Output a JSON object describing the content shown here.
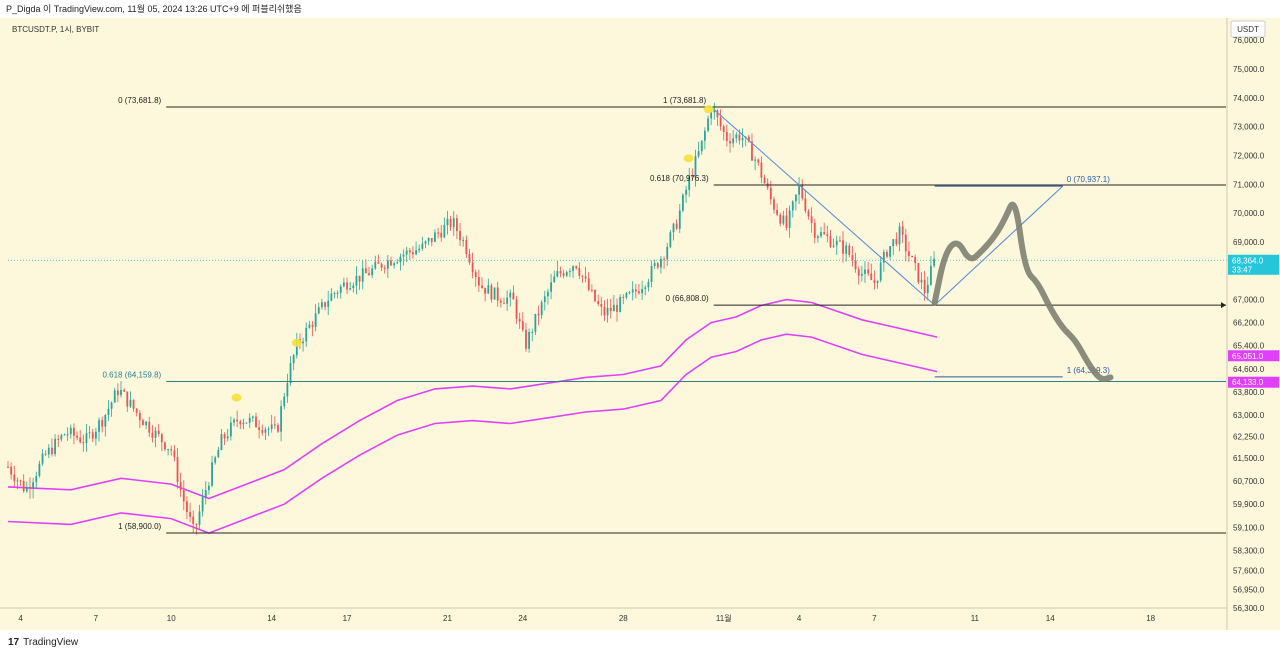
{
  "header": {
    "title": "P_Digda 이 TradingView.com, 11월 05, 2024 13:26 UTC+9 에 퍼블리쉬했음"
  },
  "colors": {
    "background": "#fdf8dc",
    "candle_up": "#26a69a",
    "candle_down": "#ef5350",
    "envelope": "#e040fb",
    "fib_line": "#222222",
    "fib_blue": "#2a5caa",
    "trend_line": "#5b8fd8",
    "drawing": "#7f7f72",
    "highlight": "#f5e03a",
    "price_tag_current": "#26c6da",
    "price_tag_magenta": "#e040fb"
  },
  "chart_data": {
    "type": "candlestick",
    "symbol": "BTCUSDT.P, 1시, BYBIT",
    "currency": "USDT",
    "ylim": [
      56300,
      76700
    ],
    "yticks": [
      "76,000.0",
      "75,000.0",
      "74,000.0",
      "73,000.0",
      "72,000.0",
      "71,000.0",
      "70,000.0",
      "69,000.0",
      "67,000.0",
      "66,200.0",
      "65,400.0",
      "64,600.0",
      "63,800.0",
      "63,000.0",
      "62,250.0",
      "61,500.0",
      "60,700.0",
      "59,900.0",
      "59,100.0",
      "58,300.0",
      "57,600.0",
      "56,950.0",
      "56,300.0"
    ],
    "xticks": [
      {
        "label": "4",
        "day": 4
      },
      {
        "label": "7",
        "day": 7
      },
      {
        "label": "10",
        "day": 10
      },
      {
        "label": "14",
        "day": 14
      },
      {
        "label": "17",
        "day": 17
      },
      {
        "label": "21",
        "day": 21
      },
      {
        "label": "24",
        "day": 24
      },
      {
        "label": "28",
        "day": 28
      },
      {
        "label": "11월",
        "day": 32
      },
      {
        "label": "4",
        "day": 35
      },
      {
        "label": "7",
        "day": 38
      },
      {
        "label": "11",
        "day": 42
      },
      {
        "label": "14",
        "day": 45
      },
      {
        "label": "18",
        "day": 49
      }
    ],
    "xlim": [
      3.5,
      52
    ],
    "price_path": [
      [
        3.5,
        61200
      ],
      [
        4.2,
        60400
      ],
      [
        5,
        61600
      ],
      [
        5.8,
        62400
      ],
      [
        6.6,
        62100
      ],
      [
        7.3,
        62900
      ],
      [
        7.9,
        63900
      ],
      [
        8.6,
        63100
      ],
      [
        9.3,
        62400
      ],
      [
        10.0,
        61800
      ],
      [
        10.4,
        60300
      ],
      [
        10.9,
        58900
      ],
      [
        11.4,
        60500
      ],
      [
        12.0,
        62100
      ],
      [
        12.7,
        62900
      ],
      [
        13.4,
        62700
      ],
      [
        14.2,
        62400
      ],
      [
        14.6,
        64200
      ],
      [
        15.0,
        65400
      ],
      [
        15.6,
        66200
      ],
      [
        16.3,
        67100
      ],
      [
        17.0,
        67600
      ],
      [
        17.8,
        67900
      ],
      [
        18.5,
        68300
      ],
      [
        19.3,
        68600
      ],
      [
        20.0,
        68800
      ],
      [
        20.6,
        69300
      ],
      [
        21.2,
        69700
      ],
      [
        21.7,
        68900
      ],
      [
        22.3,
        67500
      ],
      [
        23.0,
        67100
      ],
      [
        23.6,
        67000
      ],
      [
        24.1,
        65400
      ],
      [
        24.6,
        66500
      ],
      [
        25.3,
        67800
      ],
      [
        26.1,
        68300
      ],
      [
        26.7,
        67200
      ],
      [
        27.2,
        66500
      ],
      [
        27.8,
        66800
      ],
      [
        28.4,
        67200
      ],
      [
        29.0,
        67800
      ],
      [
        29.6,
        68600
      ],
      [
        30.1,
        69600
      ],
      [
        30.6,
        71100
      ],
      [
        31.1,
        72300
      ],
      [
        31.5,
        73681
      ],
      [
        32.1,
        72600
      ],
      [
        32.7,
        72700
      ],
      [
        33.3,
        71800
      ],
      [
        33.9,
        70400
      ],
      [
        34.5,
        69500
      ],
      [
        35.0,
        70900
      ],
      [
        35.6,
        69400
      ],
      [
        36.2,
        69100
      ],
      [
        36.9,
        68700
      ],
      [
        37.5,
        67900
      ],
      [
        38.0,
        67600
      ],
      [
        38.5,
        68700
      ],
      [
        39.0,
        69300
      ],
      [
        39.5,
        68300
      ],
      [
        40.0,
        67300
      ],
      [
        40.4,
        68364
      ]
    ],
    "envelope_upper": [
      [
        3.5,
        60500
      ],
      [
        6,
        60400
      ],
      [
        8,
        60800
      ],
      [
        10,
        60600
      ],
      [
        11.5,
        60100
      ],
      [
        13,
        60600
      ],
      [
        14.5,
        61100
      ],
      [
        16,
        62000
      ],
      [
        17.5,
        62800
      ],
      [
        19,
        63500
      ],
      [
        20.5,
        63900
      ],
      [
        22,
        64000
      ],
      [
        23.5,
        63900
      ],
      [
        25,
        64100
      ],
      [
        26.5,
        64300
      ],
      [
        28,
        64400
      ],
      [
        29.5,
        64700
      ],
      [
        30.5,
        65600
      ],
      [
        31.5,
        66200
      ],
      [
        32.5,
        66400
      ],
      [
        33.5,
        66800
      ],
      [
        34.5,
        67000
      ],
      [
        35.5,
        66900
      ],
      [
        36.5,
        66600
      ],
      [
        37.5,
        66300
      ],
      [
        38.5,
        66100
      ],
      [
        39.5,
        65900
      ],
      [
        40.5,
        65700
      ]
    ],
    "envelope_lower": [
      [
        3.5,
        59300
      ],
      [
        6,
        59200
      ],
      [
        8,
        59600
      ],
      [
        10,
        59400
      ],
      [
        11.5,
        58900
      ],
      [
        13,
        59400
      ],
      [
        14.5,
        59900
      ],
      [
        16,
        60800
      ],
      [
        17.5,
        61600
      ],
      [
        19,
        62300
      ],
      [
        20.5,
        62700
      ],
      [
        22,
        62800
      ],
      [
        23.5,
        62700
      ],
      [
        25,
        62900
      ],
      [
        26.5,
        63100
      ],
      [
        28,
        63200
      ],
      [
        29.5,
        63500
      ],
      [
        30.5,
        64400
      ],
      [
        31.5,
        65000
      ],
      [
        32.5,
        65200
      ],
      [
        33.5,
        65600
      ],
      [
        34.5,
        65800
      ],
      [
        35.5,
        65700
      ],
      [
        36.5,
        65400
      ],
      [
        37.5,
        65100
      ],
      [
        38.5,
        64900
      ],
      [
        39.5,
        64700
      ],
      [
        40.5,
        64500
      ]
    ],
    "fib_levels": [
      {
        "label": "0 (73,681.8)",
        "price": 73681.8,
        "x_start": 9.8,
        "x_end": 52,
        "color": "#222222",
        "label_side": "left"
      },
      {
        "label": "1 (73,681.8)",
        "price": 73681.8,
        "x_start": 31.5,
        "x_end": 31.5,
        "color": "#222222",
        "label_side": "left"
      },
      {
        "label": "0.618 (70,976.3)",
        "price": 70976.3,
        "x_start": 31.6,
        "x_end": 52,
        "color": "#222222",
        "label_side": "left"
      },
      {
        "label": "0 (66,808.0)",
        "price": 66808.0,
        "x_start": 31.6,
        "x_end": 52,
        "color": "#222222",
        "label_side": "left"
      },
      {
        "label": "0.618 (64,159.8)",
        "price": 64159.8,
        "x_start": 9.8,
        "x_end": 52,
        "color": "#2a7f8f",
        "label_side": "left"
      },
      {
        "label": "1 (58,900.0)",
        "price": 58900.0,
        "x_start": 9.8,
        "x_end": 52,
        "color": "#222222",
        "label_side": "left"
      },
      {
        "label": "0 (70,937.1)",
        "price": 70937.1,
        "x_start": 40.4,
        "x_end": 45.5,
        "color": "#2a5caa",
        "label_side": "right"
      },
      {
        "label": "1 (64,319.3)",
        "price": 64319.3,
        "x_start": 40.4,
        "x_end": 45.5,
        "color": "#2a5caa",
        "label_side": "right"
      }
    ],
    "trend_lines": [
      {
        "from": [
          31.5,
          73681
        ],
        "to": [
          40.4,
          66808
        ]
      },
      {
        "from": [
          40.4,
          66808
        ],
        "to": [
          45.5,
          70937
        ]
      }
    ],
    "projection_path": [
      [
        40.4,
        66900
      ],
      [
        40.8,
        68600
      ],
      [
        41.3,
        69100
      ],
      [
        41.8,
        68300
      ],
      [
        42.3,
        68700
      ],
      [
        42.8,
        69200
      ],
      [
        43.2,
        69800
      ],
      [
        43.6,
        70600
      ],
      [
        44.0,
        68000
      ],
      [
        44.5,
        67600
      ],
      [
        45.0,
        66700
      ],
      [
        45.5,
        66000
      ],
      [
        46.0,
        65600
      ],
      [
        46.5,
        64800
      ],
      [
        47.0,
        64200
      ],
      [
        47.4,
        64300
      ]
    ],
    "highlights": [
      {
        "x": 12.6,
        "price": 63600
      },
      {
        "x": 15.0,
        "price": 65500
      },
      {
        "x": 30.6,
        "price": 71900
      },
      {
        "x": 31.4,
        "price": 73600
      }
    ],
    "price_tags": [
      {
        "label": "68,364.0",
        "sub": "33:47",
        "price": 68364.0,
        "color": "#26c6da"
      },
      {
        "label": "65,051.0",
        "price": 65051.0,
        "color": "#e040fb"
      },
      {
        "label": "64,133.0",
        "price": 64133.0,
        "color": "#e040fb"
      }
    ]
  },
  "footer": {
    "logo_mark": "17",
    "logo_text": "TradingView"
  }
}
